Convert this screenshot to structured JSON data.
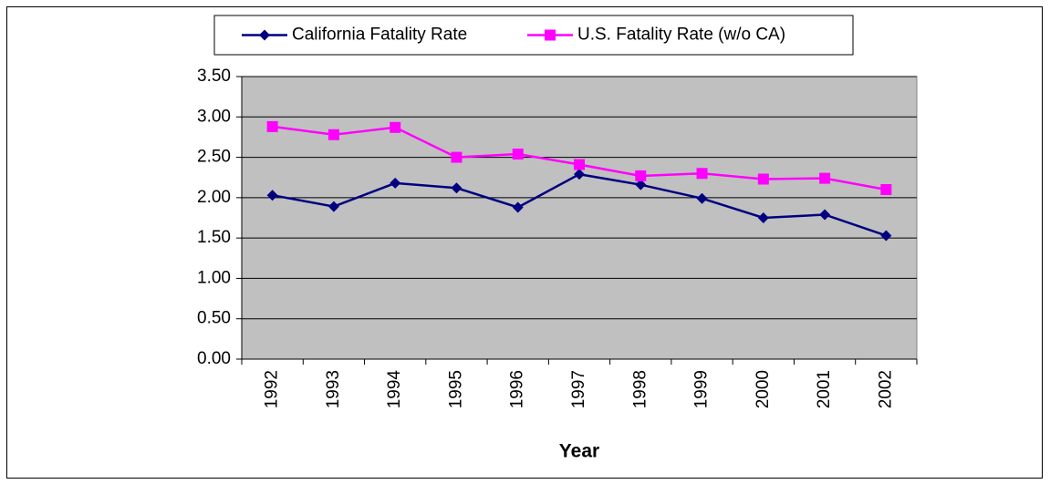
{
  "chart_data": {
    "type": "line",
    "x_label": "Year",
    "categories": [
      "1992",
      "1993",
      "1994",
      "1995",
      "1996",
      "1997",
      "1998",
      "1999",
      "2000",
      "2001",
      "2002"
    ],
    "series": [
      {
        "name": "California Fatality Rate",
        "color": "#000080",
        "marker": "diamond",
        "values": [
          2.03,
          1.89,
          2.18,
          2.12,
          1.88,
          2.29,
          2.16,
          1.99,
          1.75,
          1.79,
          1.53
        ]
      },
      {
        "name": "U.S. Fatality Rate (w/o CA)",
        "color": "#ff00ff",
        "marker": "square",
        "values": [
          2.88,
          2.78,
          2.87,
          2.5,
          2.54,
          2.41,
          2.27,
          2.3,
          2.23,
          2.24,
          2.1
        ]
      }
    ],
    "ylim": [
      0,
      3.5
    ],
    "yticks": [
      {
        "value": 0,
        "label": "0.00"
      },
      {
        "value": 0.5,
        "label": "0.50"
      },
      {
        "value": 1,
        "label": "1.00"
      },
      {
        "value": 1.5,
        "label": "1.50"
      },
      {
        "value": 2,
        "label": "2.00"
      },
      {
        "value": 2.5,
        "label": "2.50"
      },
      {
        "value": 3,
        "label": "3.00"
      },
      {
        "value": 3.5,
        "label": "3.50"
      }
    ],
    "grid": true,
    "legend": "top",
    "plot_background": "#c0c0c0"
  }
}
